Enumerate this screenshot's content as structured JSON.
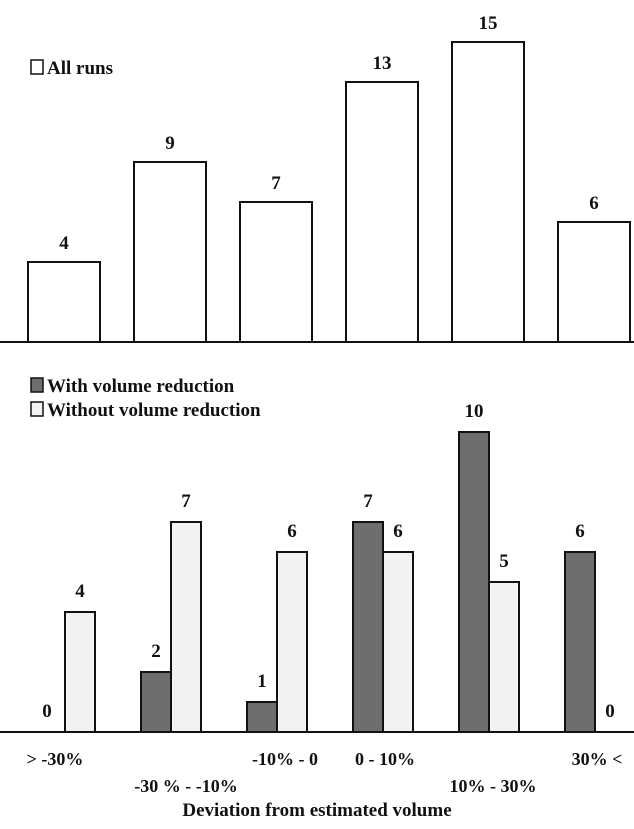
{
  "chart_data": [
    {
      "type": "bar",
      "categories": [
        "> -30%",
        "-30 % - -10%",
        "-10% - 0",
        "0 - 10%",
        "10% - 30%",
        "30% <"
      ],
      "series": [
        {
          "name": "All runs",
          "values": [
            4,
            9,
            7,
            13,
            15,
            6
          ],
          "color": "#ffffff"
        }
      ],
      "legend_position": "top-left",
      "grid": false
    },
    {
      "type": "bar",
      "categories": [
        "> -30%",
        "-30 % - -10%",
        "-10% - 0",
        "0 - 10%",
        "10% - 30%",
        "30% <"
      ],
      "series": [
        {
          "name": "With volume reduction",
          "values": [
            0,
            2,
            1,
            7,
            10,
            6
          ],
          "color": "#6e6e6e"
        },
        {
          "name": "Without volume reduction",
          "values": [
            4,
            7,
            6,
            6,
            5,
            0
          ],
          "color": "#f2f2f2"
        }
      ],
      "xlabel": "Deviation from estimated volume",
      "legend_position": "top-left",
      "grid": false
    }
  ]
}
